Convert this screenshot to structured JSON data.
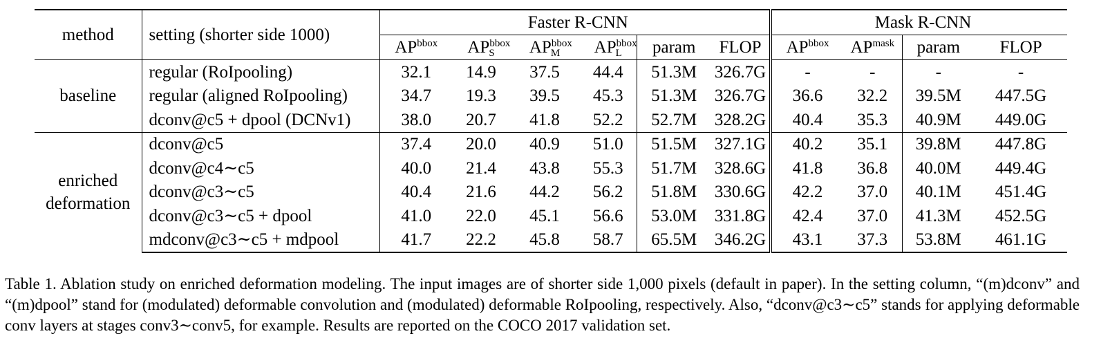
{
  "table": {
    "header": {
      "method": "method",
      "setting": "setting (shorter side 1000)",
      "faster_rcnn": "Faster R-CNN",
      "mask_rcnn": "Mask R-CNN",
      "ap": "AP",
      "sup_bbox": "bbox",
      "sup_mask": "mask",
      "sub_s": "S",
      "sub_m": "M",
      "sub_l": "L",
      "param": "param",
      "flop": "FLOP"
    },
    "groups": {
      "baseline": "baseline",
      "enriched_line1": "enriched",
      "enriched_line2": "deformation"
    },
    "rows": [
      {
        "setting": "regular (RoIpooling)",
        "v": [
          "32.1",
          "14.9",
          "37.5",
          "44.4",
          "51.3M",
          "326.7G",
          "-",
          "-",
          "-",
          "-"
        ]
      },
      {
        "setting": "regular (aligned RoIpooling)",
        "v": [
          "34.7",
          "19.3",
          "39.5",
          "45.3",
          "51.3M",
          "326.7G",
          "36.6",
          "32.2",
          "39.5M",
          "447.5G"
        ]
      },
      {
        "setting": "dconv@c5 + dpool (DCNv1)",
        "v": [
          "38.0",
          "20.7",
          "41.8",
          "52.2",
          "52.7M",
          "328.2G",
          "40.4",
          "35.3",
          "40.9M",
          "449.0G"
        ]
      },
      {
        "setting": "dconv@c5",
        "v": [
          "37.4",
          "20.0",
          "40.9",
          "51.0",
          "51.5M",
          "327.1G",
          "40.2",
          "35.1",
          "39.8M",
          "447.8G"
        ]
      },
      {
        "setting": "dconv@c4∼c5",
        "v": [
          "40.0",
          "21.4",
          "43.8",
          "55.3",
          "51.7M",
          "328.6G",
          "41.8",
          "36.8",
          "40.0M",
          "449.4G"
        ]
      },
      {
        "setting": "dconv@c3∼c5",
        "v": [
          "40.4",
          "21.6",
          "44.2",
          "56.2",
          "51.8M",
          "330.6G",
          "42.2",
          "37.0",
          "40.1M",
          "451.4G"
        ]
      },
      {
        "setting": "dconv@c3∼c5 + dpool",
        "v": [
          "41.0",
          "22.0",
          "45.1",
          "56.6",
          "53.0M",
          "331.8G",
          "42.4",
          "37.0",
          "41.3M",
          "452.5G"
        ]
      },
      {
        "setting": "mdconv@c3∼c5 + mdpool",
        "v": [
          "41.7",
          "22.2",
          "45.8",
          "58.7",
          "65.5M",
          "346.2G",
          "43.1",
          "37.3",
          "53.8M",
          "461.1G"
        ]
      }
    ]
  },
  "caption": "Table 1. Ablation study on enriched deformation modeling. The input images are of shorter side 1,000 pixels (default in paper). In the setting column, “(m)dconv” and “(m)dpool” stand for (modulated) deformable convolution and (modulated) deformable RoIpooling, respectively. Also, “dconv@c3∼c5” stands for applying deformable conv layers at stages conv3∼conv5, for example. Results are reported on the COCO 2017 validation set."
}
